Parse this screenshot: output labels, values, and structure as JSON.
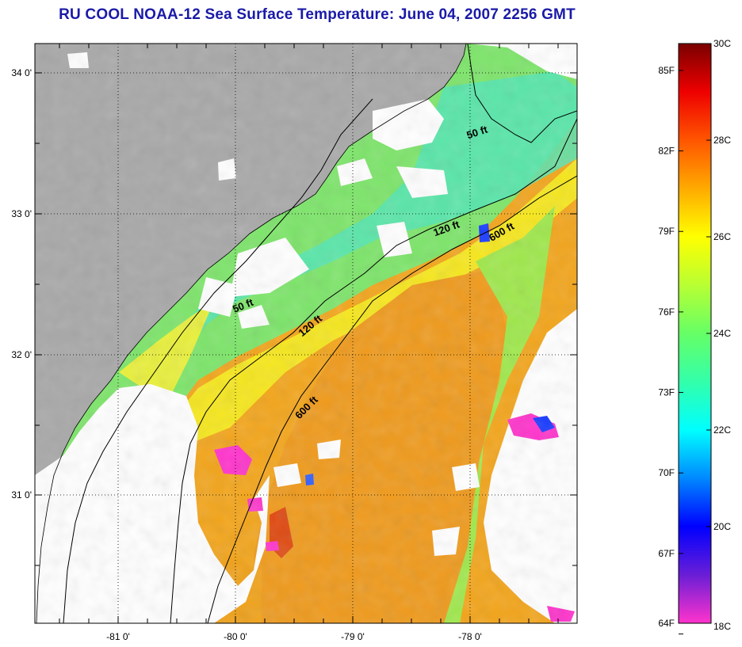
{
  "title": "RU COOL  NOAA-12  Sea Surface Temperature:  June 04, 2007 2256 GMT",
  "map": {
    "lon_ticks": [
      "-81 0'",
      "-80 0'",
      "-79 0'",
      "-78 0'"
    ],
    "lat_ticks": [
      "34 0'",
      "33 0'",
      "32 0'",
      "31 0'"
    ],
    "lon_range": [
      -81.7,
      -77.15
    ],
    "lat_range": [
      30.18,
      34.21
    ],
    "grid": true,
    "colors": {
      "land": "#a8a8a8",
      "cloud_no_data": "#ffffff",
      "sea_warm": "#f3a51b",
      "sea_mid": "#f6e71d",
      "sea_cool": "#7de56a"
    }
  },
  "contours": [
    {
      "label": "50 ft"
    },
    {
      "label": "120 ft"
    },
    {
      "label": "600 ft"
    },
    {
      "label": "50 ft"
    },
    {
      "label": "120 ft"
    },
    {
      "label": "600 ft"
    }
  ],
  "colorbar": {
    "celsius_labels": [
      "30C",
      "28C",
      "26C",
      "24C",
      "22C",
      "20C",
      "18C"
    ],
    "fahrenheit_labels": [
      "85F",
      "82F",
      "79F",
      "76F",
      "73F",
      "70F",
      "67F",
      "64F"
    ],
    "range_c": [
      18,
      30
    ],
    "stops": [
      {
        "c": 18,
        "color": "#ff33cc"
      },
      {
        "c": 19,
        "color": "#6a1ed6"
      },
      {
        "c": 20,
        "color": "#0000ff"
      },
      {
        "c": 21,
        "color": "#0088ff"
      },
      {
        "c": 22,
        "color": "#00ffff"
      },
      {
        "c": 23,
        "color": "#33ffaa"
      },
      {
        "c": 24,
        "color": "#66ff66"
      },
      {
        "c": 25,
        "color": "#b8ff33"
      },
      {
        "c": 26,
        "color": "#ffff00"
      },
      {
        "c": 27,
        "color": "#ffaa00"
      },
      {
        "c": 28,
        "color": "#ff5500"
      },
      {
        "c": 29,
        "color": "#ee0000"
      },
      {
        "c": 30,
        "color": "#7a0000"
      }
    ]
  }
}
